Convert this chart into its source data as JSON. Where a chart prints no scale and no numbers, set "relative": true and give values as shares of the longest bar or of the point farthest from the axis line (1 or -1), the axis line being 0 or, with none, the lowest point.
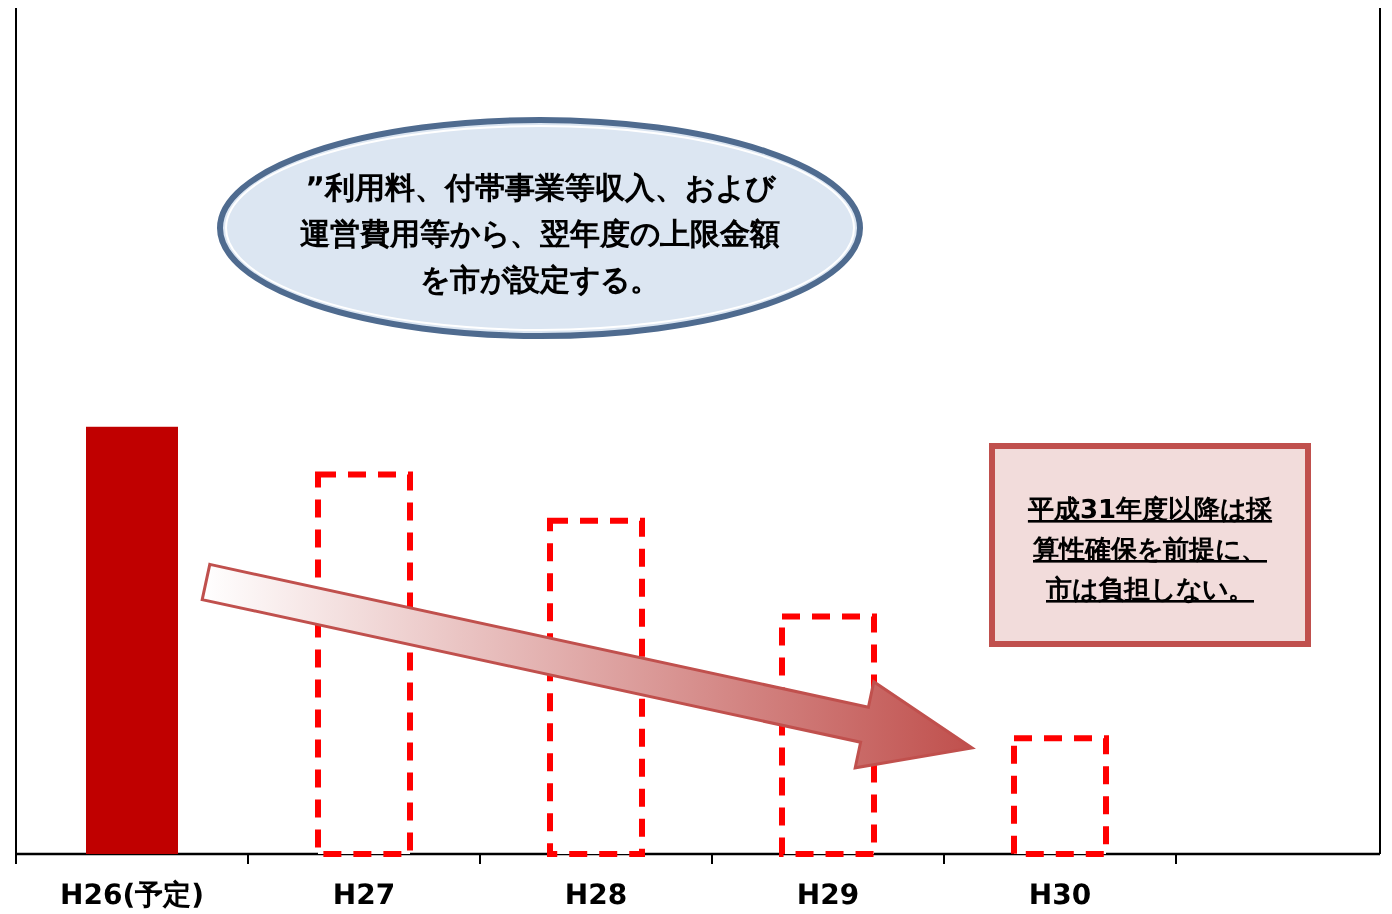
{
  "chart_data": {
    "type": "bar",
    "relative": true,
    "categories": [
      "H26(予定)",
      "H27",
      "H28",
      "H29",
      "H30",
      null
    ],
    "series": [
      {
        "color": "#c00000",
        "values": [
          1,
          null,
          null,
          null,
          null,
          null
        ]
      },
      {
        "color": "#ff0000",
        "line_style": "dashed",
        "values": [
          null,
          0.888,
          0.78,
          0.556,
          0.271,
          null
        ]
      }
    ],
    "annotations": [
      "”利用料、付帯事業等収入、および運営費用等から、翌年度の上限金額を市が設定する。",
      "平成31年度以降は採算性確保を前提に、市は負担しない。"
    ]
  }
}
